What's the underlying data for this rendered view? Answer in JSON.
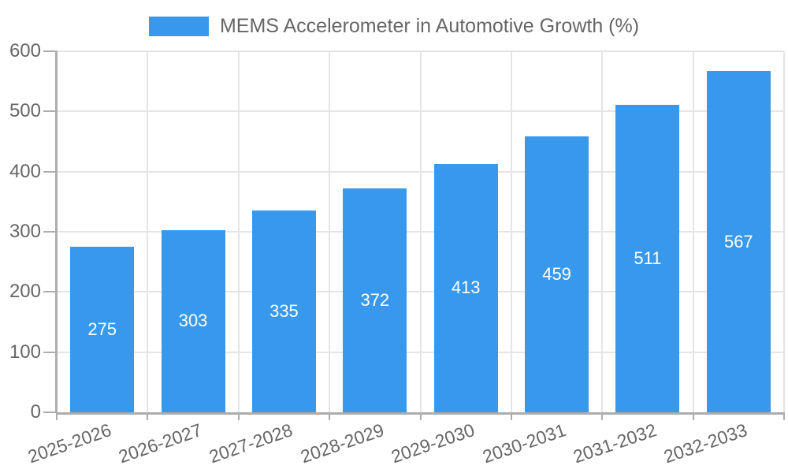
{
  "chart_data": {
    "type": "bar",
    "title": "MEMS Accelerometer in Automotive Growth (%)",
    "categories": [
      "2025-2026",
      "2026-2027",
      "2027-2028",
      "2028-2029",
      "2029-2030",
      "2030-2031",
      "2031-2032",
      "2032-2033"
    ],
    "series": [
      {
        "name": "MEMS Accelerometer in Automotive Growth (%)",
        "values": [
          275,
          303,
          335,
          372,
          413,
          459,
          511,
          567
        ]
      }
    ],
    "values": [
      275,
      303,
      335,
      372,
      413,
      459,
      511,
      567
    ],
    "value_labels": [
      "275",
      "303",
      "335",
      "372",
      "413",
      "459",
      "511",
      "567"
    ],
    "value_label_position": "inside-center",
    "xlabel": "",
    "ylabel": "",
    "ylim": [
      0,
      600
    ],
    "yticks": [
      0,
      100,
      200,
      300,
      400,
      500,
      600
    ],
    "ytick_labels": [
      "0",
      "100",
      "200",
      "300",
      "400",
      "500",
      "600"
    ],
    "grid": true,
    "legend_position": "top-center",
    "colors": {
      "bar": "#3899ec",
      "value_label": "#ffffff",
      "tick_label": "#666666",
      "gridline": "#e5e5e5",
      "axis": "#adadad",
      "background": "#ffffff"
    }
  }
}
